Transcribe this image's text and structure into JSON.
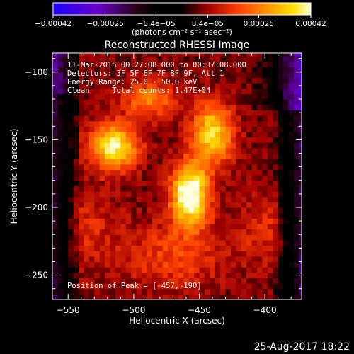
{
  "chart_data": {
    "type": "heatmap",
    "title": "Reconstructed RHESSI Image",
    "xlabel": "Heliocentric X (arcsec)",
    "ylabel": "Heliocentric Y (arcsec)",
    "xlim": [
      -562,
      -372
    ],
    "ylim": [
      -268,
      -86
    ],
    "x_ticks": [
      -550,
      -500,
      -450,
      -400
    ],
    "y_ticks": [
      -100,
      -150,
      -200,
      -250
    ],
    "x_tick_labels": [
      "−550",
      "−500",
      "−450",
      "−400"
    ],
    "y_tick_labels": [
      "−100",
      "−150",
      "−200",
      "−250"
    ],
    "colorbar": {
      "min": -0.00042,
      "max": 0.00042,
      "tick_values": [
        -0.00042,
        -0.00025,
        -8.4e-05,
        8.4e-05,
        0.00025,
        0.00042
      ],
      "tick_labels": [
        "−0.00042",
        "−0.00025",
        "−8.4e−05",
        "8.4e−05",
        "0.00025",
        "0.00042"
      ],
      "units": "(photons cm⁻² s⁻¹ asec⁻²)"
    },
    "annotations": [
      "11-Mar-2015 00:27:08.000 to 00:37:08.000",
      "Detectors: 3F 5F 6F 7F 8F 9F, Att 1",
      "Energy Range: 25.0 - 50.0 keV",
      "Clean     Total counts: 1.47E+04"
    ],
    "peak_label": "Position of Peak = [-457,-190]",
    "peak": [
      -457,
      -190
    ],
    "sources": [
      {
        "x": -457,
        "y": -190,
        "amp": 0.00042,
        "sx": 10,
        "sy": 16
      },
      {
        "x": -515,
        "y": -155,
        "amp": 0.00035,
        "sx": 13,
        "sy": 12
      },
      {
        "x": -440,
        "y": -145,
        "amp": 0.00031,
        "sx": 11,
        "sy": 16
      },
      {
        "x": -488,
        "y": -120,
        "amp": 0.0002,
        "sx": 14,
        "sy": 10
      },
      {
        "x": -470,
        "y": -235,
        "amp": 0.00012,
        "sx": 28,
        "sy": 18
      },
      {
        "x": -400,
        "y": -215,
        "amp": 9e-05,
        "sx": 14,
        "sy": 18
      },
      {
        "x": -535,
        "y": -215,
        "amp": 8e-05,
        "sx": 16,
        "sy": 20
      }
    ],
    "background_level": 6e-05
  },
  "footer_date": "25-Aug-2017 18:22"
}
